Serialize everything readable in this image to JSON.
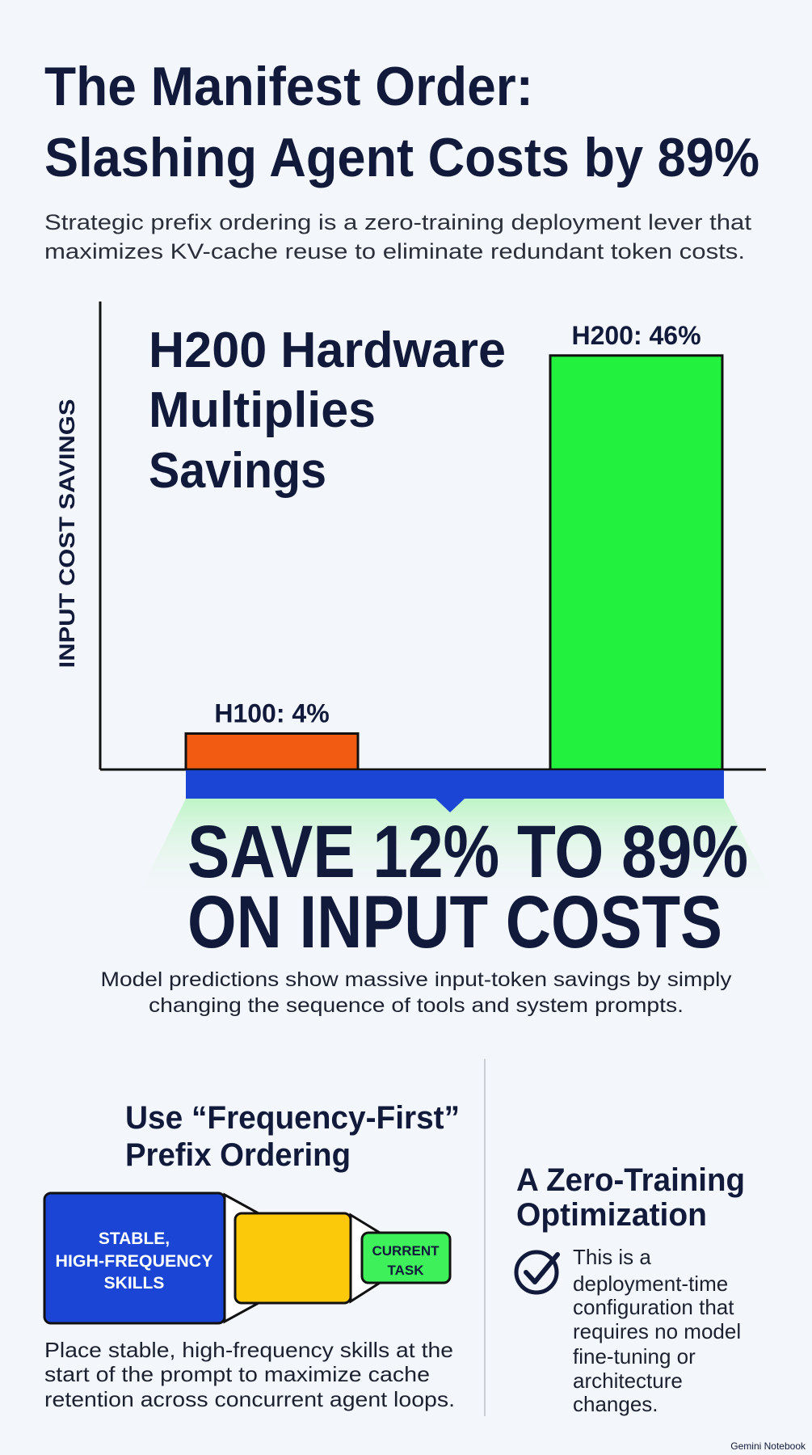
{
  "header": {
    "title_lines": [
      "The Manifest Order:",
      "Slashing Agent Costs by 89%"
    ],
    "subtitle_lines": [
      "Strategic prefix ordering is a zero-training deployment lever that",
      "maximizes KV-cache reuse to eliminate redundant token costs."
    ]
  },
  "chart_data": {
    "type": "bar",
    "title_lines": [
      "H200 Hardware",
      "Multiplies",
      "Savings"
    ],
    "y_label": "INPUT COST SAVINGS",
    "categories": [
      "H100",
      "H200"
    ],
    "values": [
      4,
      46
    ],
    "value_labels": [
      "H100: 4%",
      "H200: 46%"
    ],
    "colors": [
      "#f25c12",
      "#22f23e"
    ],
    "ylim": [
      0,
      52
    ],
    "grid": false
  },
  "banner": {
    "lines": [
      "SAVE 12% TO 89%",
      "ON INPUT COSTS"
    ],
    "description_lines": [
      "Model predictions show massive input-token savings by simply",
      "changing the sequence of tools and system prompts."
    ]
  },
  "left_panel": {
    "heading_lines": [
      "Use “Frequency-First”",
      "Prefix Ordering"
    ],
    "block_stable_lines": [
      "STABLE,",
      "HIGH-FREQUENCY",
      "SKILLS"
    ],
    "block_current_lines": [
      "CURRENT",
      "TASK"
    ],
    "caption_lines": [
      "Place stable, high-frequency skills at the",
      "start of the prompt to maximize cache",
      "retention across concurrent agent loops."
    ]
  },
  "right_panel": {
    "heading_lines": [
      "A Zero-Training",
      "Optimization"
    ],
    "body_lines": [
      "This is a",
      "deployment-time",
      "configuration that",
      "requires no model",
      "fine-tuning or",
      "architecture",
      "changes."
    ]
  },
  "footer": {
    "brand": "Gemini Notebook"
  }
}
